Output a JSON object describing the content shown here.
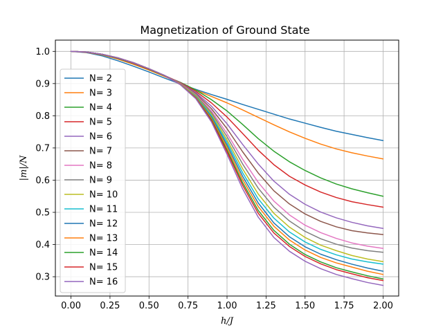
{
  "chart_data": {
    "type": "line",
    "title": "Magnetization of Ground State",
    "xlabel": "h/J",
    "ylabel": "|m|/N",
    "xlim": [
      -0.1,
      2.1
    ],
    "ylim": [
      0.24,
      1.035
    ],
    "xticks": [
      0.0,
      0.25,
      0.5,
      0.75,
      1.0,
      1.25,
      1.5,
      1.75,
      2.0
    ],
    "xtick_labels": [
      "0.00",
      "0.25",
      "0.50",
      "0.75",
      "1.00",
      "1.25",
      "1.50",
      "1.75",
      "2.00"
    ],
    "yticks": [
      0.3,
      0.4,
      0.5,
      0.6,
      0.7,
      0.8,
      0.9,
      1.0
    ],
    "ytick_labels": [
      "0.3",
      "0.4",
      "0.5",
      "0.6",
      "0.7",
      "0.8",
      "0.9",
      "1.0"
    ],
    "grid": true,
    "legend_position": "left",
    "x": [
      0.0,
      0.1,
      0.2,
      0.3,
      0.4,
      0.5,
      0.6,
      0.7,
      0.8,
      0.9,
      1.0,
      1.1,
      1.2,
      1.3,
      1.4,
      1.5,
      1.6,
      1.7,
      1.8,
      1.9,
      2.0
    ],
    "series": [
      {
        "name": "N= 2",
        "color": "#1f77b4",
        "values": [
          1.0,
          0.996,
          0.986,
          0.971,
          0.954,
          0.936,
          0.917,
          0.899,
          0.882,
          0.866,
          0.851,
          0.835,
          0.82,
          0.805,
          0.79,
          0.777,
          0.764,
          0.752,
          0.742,
          0.732,
          0.723
        ]
      },
      {
        "name": "N= 3",
        "color": "#ff7f0e",
        "values": [
          1.0,
          0.997,
          0.989,
          0.976,
          0.96,
          0.942,
          0.922,
          0.902,
          0.88,
          0.86,
          0.84,
          0.818,
          0.795,
          0.772,
          0.75,
          0.73,
          0.712,
          0.697,
          0.685,
          0.675,
          0.666
        ]
      },
      {
        "name": "N= 4",
        "color": "#2ca02c",
        "values": [
          1.0,
          0.998,
          0.99,
          0.978,
          0.962,
          0.944,
          0.924,
          0.904,
          0.88,
          0.85,
          0.815,
          0.773,
          0.729,
          0.69,
          0.657,
          0.63,
          0.607,
          0.588,
          0.573,
          0.561,
          0.55
        ]
      },
      {
        "name": "N= 5",
        "color": "#d62728",
        "values": [
          1.0,
          0.998,
          0.991,
          0.979,
          0.963,
          0.945,
          0.925,
          0.903,
          0.876,
          0.84,
          0.796,
          0.745,
          0.693,
          0.648,
          0.612,
          0.585,
          0.563,
          0.546,
          0.533,
          0.524,
          0.516
        ]
      },
      {
        "name": "N= 6",
        "color": "#9467bd",
        "values": [
          1.0,
          0.998,
          0.991,
          0.979,
          0.964,
          0.946,
          0.925,
          0.902,
          0.872,
          0.83,
          0.775,
          0.711,
          0.65,
          0.597,
          0.556,
          0.525,
          0.501,
          0.483,
          0.469,
          0.458,
          0.45
        ]
      },
      {
        "name": "N= 7",
        "color": "#8c564b",
        "values": [
          1.0,
          0.998,
          0.991,
          0.979,
          0.964,
          0.946,
          0.925,
          0.901,
          0.869,
          0.822,
          0.76,
          0.688,
          0.622,
          0.567,
          0.526,
          0.495,
          0.472,
          0.455,
          0.443,
          0.436,
          0.431
        ]
      },
      {
        "name": "N= 8",
        "color": "#e377c2",
        "values": [
          1.0,
          0.998,
          0.991,
          0.98,
          0.964,
          0.946,
          0.925,
          0.9,
          0.866,
          0.815,
          0.745,
          0.665,
          0.593,
          0.535,
          0.492,
          0.46,
          0.437,
          0.419,
          0.405,
          0.395,
          0.388
        ]
      },
      {
        "name": "N= 9",
        "color": "#7f7f7f",
        "values": [
          1.0,
          0.998,
          0.991,
          0.98,
          0.965,
          0.946,
          0.925,
          0.899,
          0.864,
          0.81,
          0.735,
          0.65,
          0.575,
          0.516,
          0.473,
          0.441,
          0.418,
          0.401,
          0.389,
          0.381,
          0.376
        ]
      },
      {
        "name": "N= 10",
        "color": "#bcbd22",
        "values": [
          1.0,
          0.998,
          0.991,
          0.98,
          0.965,
          0.946,
          0.925,
          0.899,
          0.862,
          0.805,
          0.725,
          0.635,
          0.557,
          0.497,
          0.454,
          0.422,
          0.398,
          0.381,
          0.366,
          0.355,
          0.347
        ]
      },
      {
        "name": "N= 11",
        "color": "#17becf",
        "values": [
          1.0,
          0.998,
          0.991,
          0.98,
          0.965,
          0.946,
          0.925,
          0.898,
          0.86,
          0.8,
          0.717,
          0.623,
          0.542,
          0.482,
          0.439,
          0.408,
          0.385,
          0.368,
          0.355,
          0.346,
          0.339
        ]
      },
      {
        "name": "N= 12",
        "color": "#1f77b4",
        "values": [
          1.0,
          0.998,
          0.991,
          0.98,
          0.965,
          0.946,
          0.925,
          0.898,
          0.858,
          0.796,
          0.709,
          0.612,
          0.529,
          0.467,
          0.424,
          0.393,
          0.37,
          0.353,
          0.339,
          0.327,
          0.317
        ]
      },
      {
        "name": "N= 13",
        "color": "#ff7f0e",
        "values": [
          1.0,
          0.998,
          0.991,
          0.98,
          0.965,
          0.946,
          0.925,
          0.898,
          0.857,
          0.792,
          0.702,
          0.602,
          0.518,
          0.457,
          0.414,
          0.383,
          0.36,
          0.343,
          0.33,
          0.317,
          0.307
        ]
      },
      {
        "name": "N= 14",
        "color": "#2ca02c",
        "values": [
          1.0,
          0.998,
          0.991,
          0.98,
          0.965,
          0.946,
          0.925,
          0.897,
          0.855,
          0.788,
          0.694,
          0.592,
          0.506,
          0.444,
          0.401,
          0.369,
          0.346,
          0.328,
          0.315,
          0.303,
          0.293
        ]
      },
      {
        "name": "N= 15",
        "color": "#d62728",
        "values": [
          1.0,
          0.998,
          0.991,
          0.98,
          0.965,
          0.946,
          0.925,
          0.897,
          0.854,
          0.785,
          0.688,
          0.584,
          0.497,
          0.436,
          0.394,
          0.363,
          0.34,
          0.322,
          0.309,
          0.297,
          0.288
        ]
      },
      {
        "name": "N= 16",
        "color": "#9467bd",
        "values": [
          1.0,
          0.998,
          0.991,
          0.98,
          0.965,
          0.946,
          0.925,
          0.897,
          0.853,
          0.781,
          0.68,
          0.573,
          0.485,
          0.422,
          0.379,
          0.348,
          0.325,
          0.307,
          0.294,
          0.282,
          0.273
        ]
      }
    ]
  }
}
